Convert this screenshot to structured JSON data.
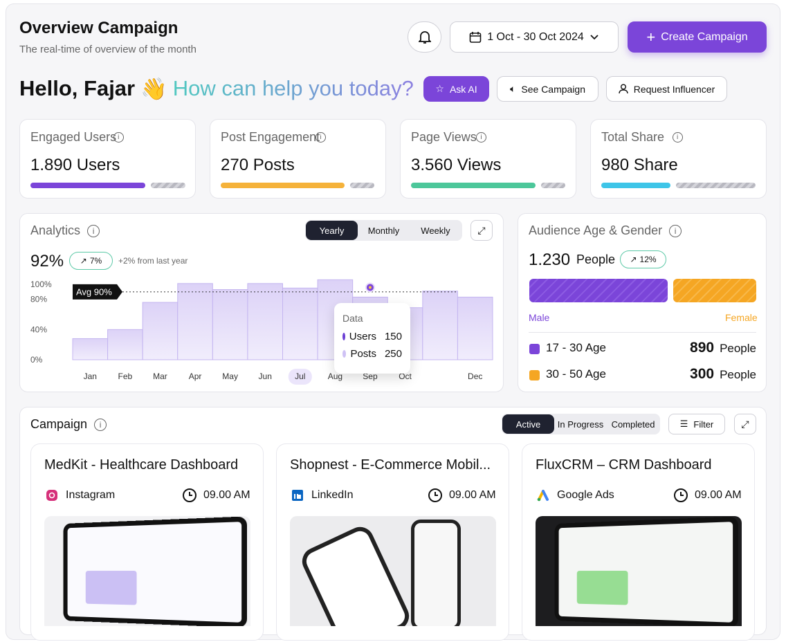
{
  "header": {
    "title": "Overview Campaign",
    "subtitle": "The real-time of overview of the month",
    "date_range": "1 Oct - 30 Oct 2024",
    "create_button": "Create Campaign"
  },
  "greeting": {
    "hello": "Hello, Fajar",
    "emoji": "👋",
    "question": "How can help you today?",
    "actions": [
      "Ask AI",
      "See Campaign",
      "Request Influencer"
    ]
  },
  "stats": [
    {
      "label": "Engaged Users",
      "value": "1.890 Users",
      "color": "#7b45d9"
    },
    {
      "label": "Post Engagement",
      "value": "270 Posts",
      "color": "#f5b23a"
    },
    {
      "label": "Page Views",
      "value": "3.560 Views",
      "color": "#4cc79a"
    },
    {
      "label": "Total Share",
      "value": "980 Share",
      "color": "#3ec5e8"
    }
  ],
  "analytics": {
    "title": "Analytics",
    "tabs": [
      "Yearly",
      "Monthly",
      "Weekly"
    ],
    "value": "92%",
    "change": "7%",
    "note": "+2% from last year",
    "chart_data": {
      "type": "bar",
      "categories": [
        "Jan",
        "Feb",
        "Mar",
        "Apr",
        "May",
        "Jun",
        "Jul",
        "Aug",
        "Sep",
        "Oct",
        null,
        "Dec"
      ],
      "values": [
        28,
        40,
        76,
        101,
        93,
        101,
        95,
        106,
        83,
        69,
        91,
        83
      ],
      "color": "#dcd2f7",
      "ylim": [
        0,
        110
      ],
      "yticks": [
        {
          "value": 0,
          "label": "0%"
        },
        {
          "value": 40,
          "label": "40%"
        },
        {
          "value": 80,
          "label": "80%"
        },
        {
          "value": 100,
          "label": "100%"
        }
      ],
      "average": {
        "value": 90,
        "label": "Avg 90%"
      },
      "tooltip": {
        "title": "Data",
        "items": [
          {
            "name": "Users",
            "value": 150,
            "color": "#6b3fd4"
          },
          {
            "name": "Posts",
            "value": 250,
            "color": "#cfc2f5"
          }
        ]
      }
    }
  },
  "audience": {
    "title": "Audience Age & Gender",
    "total": "1.230",
    "unit": "People",
    "change": "12%",
    "male": "Male",
    "female": "Female",
    "groups": [
      {
        "label": "17 - 30 Age",
        "value": "890",
        "unit": "People",
        "color": "#7b45d9"
      },
      {
        "label": "30 - 50 Age",
        "value": "300",
        "unit": "People",
        "color": "#f5a623"
      }
    ]
  },
  "campaign": {
    "title": "Campaign",
    "tabs": [
      "Active",
      "In Progress",
      "Completed"
    ],
    "filter": "Filter",
    "cards": [
      {
        "title": "MedKit - Healthcare Dashboard",
        "platform": "Instagram",
        "time": "09.00 AM"
      },
      {
        "title": "Shopnest - E-Commerce Mobil...",
        "platform": "LinkedIn",
        "time": "09.00 AM"
      },
      {
        "title": "FluxCRM – CRM Dashboard",
        "platform": "Google Ads",
        "time": "09.00 AM"
      }
    ]
  }
}
